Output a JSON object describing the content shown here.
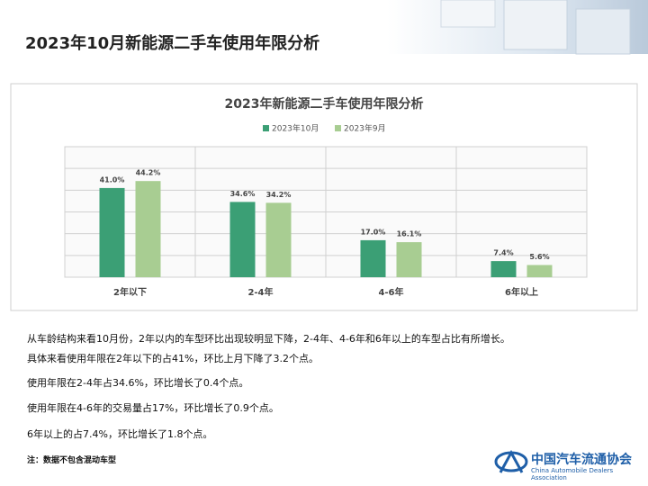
{
  "header": {
    "title": "2023年10月新能源二手车使用年限分析"
  },
  "chart_data": {
    "type": "bar",
    "title": "2023年新能源二手车使用年限分析",
    "categories": [
      "2年以下",
      "2-4年",
      "4-6年",
      "6年以上"
    ],
    "series": [
      {
        "name": "2023年10月",
        "color": "#3b9f75",
        "values": [
          41.0,
          34.6,
          17.0,
          7.4
        ],
        "value_labels": [
          "41.0%",
          "34.6%",
          "17.0%",
          "7.4%"
        ]
      },
      {
        "name": "2023年9月",
        "color": "#a8cd92",
        "values": [
          44.2,
          34.2,
          16.1,
          5.6
        ],
        "value_labels": [
          "44.2%",
          "34.2%",
          "16.1%",
          "5.6%"
        ]
      }
    ],
    "ylim": [
      0,
      60
    ],
    "yticks": [
      0,
      10,
      20,
      30,
      40,
      50,
      60
    ],
    "grid": true,
    "legend": "top"
  },
  "paragraphs": [
    "从车龄结构来看10月份，2年以内的车型环比出现较明显下降，2-4年、4-6年和6年以上的车型占比有所增长。",
    "具体来看使用年限在2年以下的占41%，环比上月下降了3.2个点。",
    "使用年限在2-4年占34.6%，环比增长了0.4个点。",
    "使用年限在4-6年的交易量占17%，环比增长了0.9个点。",
    "6年以上的占7.4%，环比增长了1.8个点。"
  ],
  "note": "注：数据不包含混动车型",
  "logo": {
    "name": "中国汽车流通协会",
    "name_en": "China Automobile Dealers Association"
  }
}
